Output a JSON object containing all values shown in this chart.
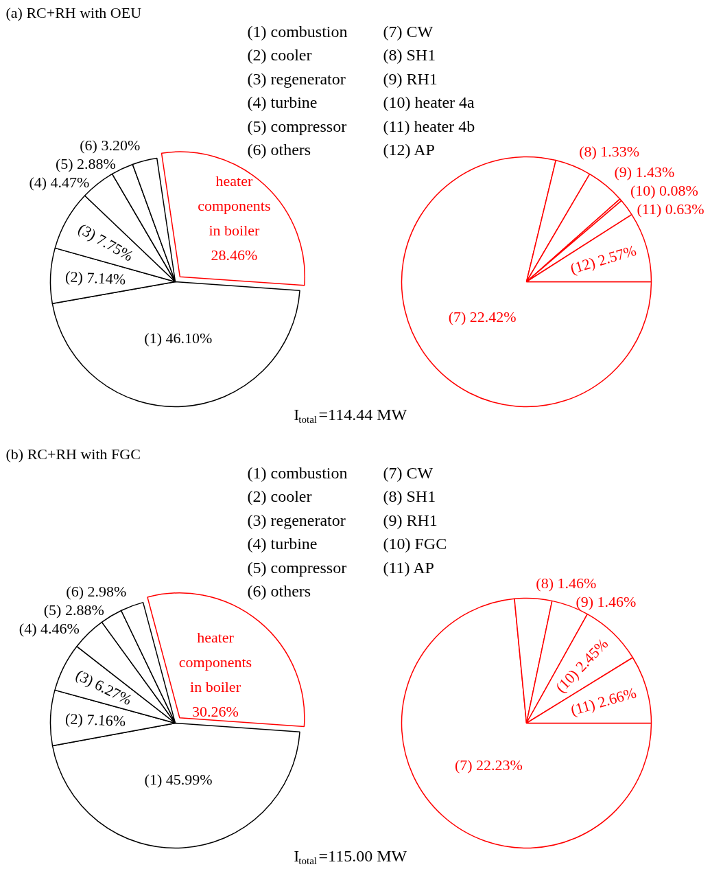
{
  "chart_data": [
    {
      "type": "pie",
      "title": "(a) RC+RH with OEU",
      "categories": [
        "(1)",
        "(2)",
        "(3)",
        "(4)",
        "(5)",
        "(6)",
        "heater components in boiler"
      ],
      "values": [
        46.1,
        7.14,
        7.75,
        4.47,
        2.88,
        3.2,
        28.46
      ],
      "value_labels": [
        "46.10%",
        "7.14%",
        "7.75%",
        "4.47%",
        "2.88%",
        "3.20%",
        "28.46%"
      ],
      "colors": [
        "#000000",
        "#000000",
        "#000000",
        "#000000",
        "#000000",
        "#000000",
        "#ff0000"
      ],
      "annotations": [
        "(1) combustion",
        "(2) cooler",
        "(3) regenerator",
        "(4) turbine",
        "(5) compressor",
        "(6) others"
      ],
      "xlabel": "I$_{total}$=114.44 MW"
    },
    {
      "type": "pie",
      "categories": [
        "(7)",
        "(8)",
        "(9)",
        "(10)",
        "(11)",
        "(12)"
      ],
      "values": [
        22.42,
        1.33,
        1.43,
        0.08,
        0.63,
        2.57
      ],
      "value_labels": [
        "22.42%",
        "1.33%",
        "1.43%",
        "0.08%",
        "0.63%",
        "2.57%"
      ],
      "colors": [
        "#ff0000",
        "#ff0000",
        "#ff0000",
        "#ff0000",
        "#ff0000",
        "#ff0000"
      ],
      "annotations": [
        "(7) CW",
        "(8) SH1",
        "(9) RH1",
        "(10) heater 4a",
        "(11) heater 4b",
        "(12) AP"
      ]
    },
    {
      "type": "pie",
      "title": "(b) RC+RH with FGC",
      "categories": [
        "(1)",
        "(2)",
        "(3)",
        "(4)",
        "(5)",
        "(6)",
        "heater components in boiler"
      ],
      "values": [
        45.99,
        7.16,
        6.27,
        4.46,
        2.88,
        2.98,
        30.26
      ],
      "value_labels": [
        "45.99%",
        "7.16%",
        "6.27%",
        "4.46%",
        "2.88%",
        "2.98%",
        "30.26%"
      ],
      "colors": [
        "#000000",
        "#000000",
        "#000000",
        "#000000",
        "#000000",
        "#000000",
        "#ff0000"
      ],
      "annotations": [
        "(1) combustion",
        "(2) cooler",
        "(3) regenerator",
        "(4) turbine",
        "(5) compressor",
        "(6) others"
      ],
      "xlabel": "I$_{total}$=115.00 MW"
    },
    {
      "type": "pie",
      "categories": [
        "(7)",
        "(8)",
        "(9)",
        "(10)",
        "(11)"
      ],
      "values": [
        22.23,
        1.46,
        1.46,
        2.45,
        2.66
      ],
      "value_labels": [
        "22.23%",
        "1.46%",
        "1.46%",
        "2.45%",
        "2.66%"
      ],
      "colors": [
        "#ff0000",
        "#ff0000",
        "#ff0000",
        "#ff0000",
        "#ff0000"
      ],
      "annotations": [
        "(7) CW",
        "(8) SH1",
        "(9) RH1",
        "(10) FGC",
        "(11) AP"
      ]
    }
  ]
}
